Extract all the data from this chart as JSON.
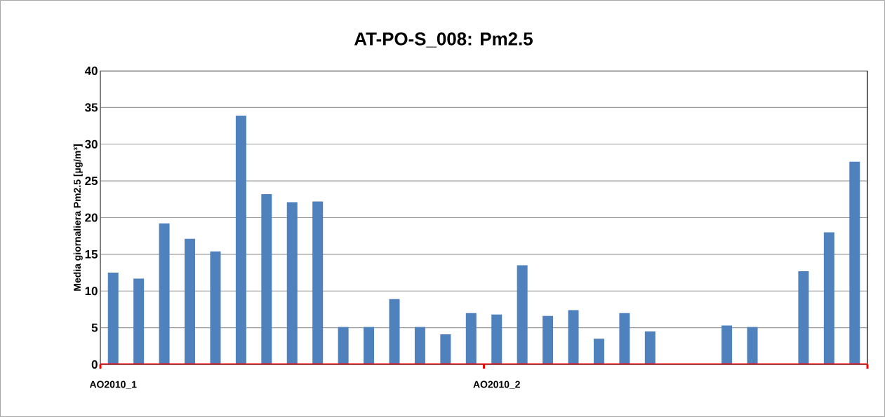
{
  "chart_data": {
    "type": "bar",
    "title": "AT-PO-S_008: Pm2.5",
    "ylabel": "Media giornaliera  Pm2.5 [µg/m³]",
    "categories": [
      "AO2010_1",
      null,
      null,
      null,
      null,
      null,
      null,
      null,
      null,
      null,
      null,
      null,
      null,
      null,
      null,
      "AO2010_2",
      null,
      null,
      null,
      null,
      null,
      null,
      null,
      null,
      null,
      null,
      null,
      null,
      null,
      null
    ],
    "values": [
      12.5,
      11.7,
      19.2,
      17.1,
      15.4,
      33.9,
      23.2,
      22.1,
      22.2,
      5.1,
      5.1,
      8.9,
      5.1,
      4.1,
      7.0,
      6.8,
      13.5,
      6.6,
      7.4,
      3.5,
      7.0,
      4.5,
      null,
      null,
      5.3,
      5.1,
      null,
      12.7,
      18.0,
      27.6
    ],
    "color": "#4f81bd",
    "ylim": [
      0,
      40
    ],
    "yticks": [
      0,
      5,
      10,
      15,
      20,
      25,
      30,
      35,
      40
    ],
    "grid": "y"
  }
}
